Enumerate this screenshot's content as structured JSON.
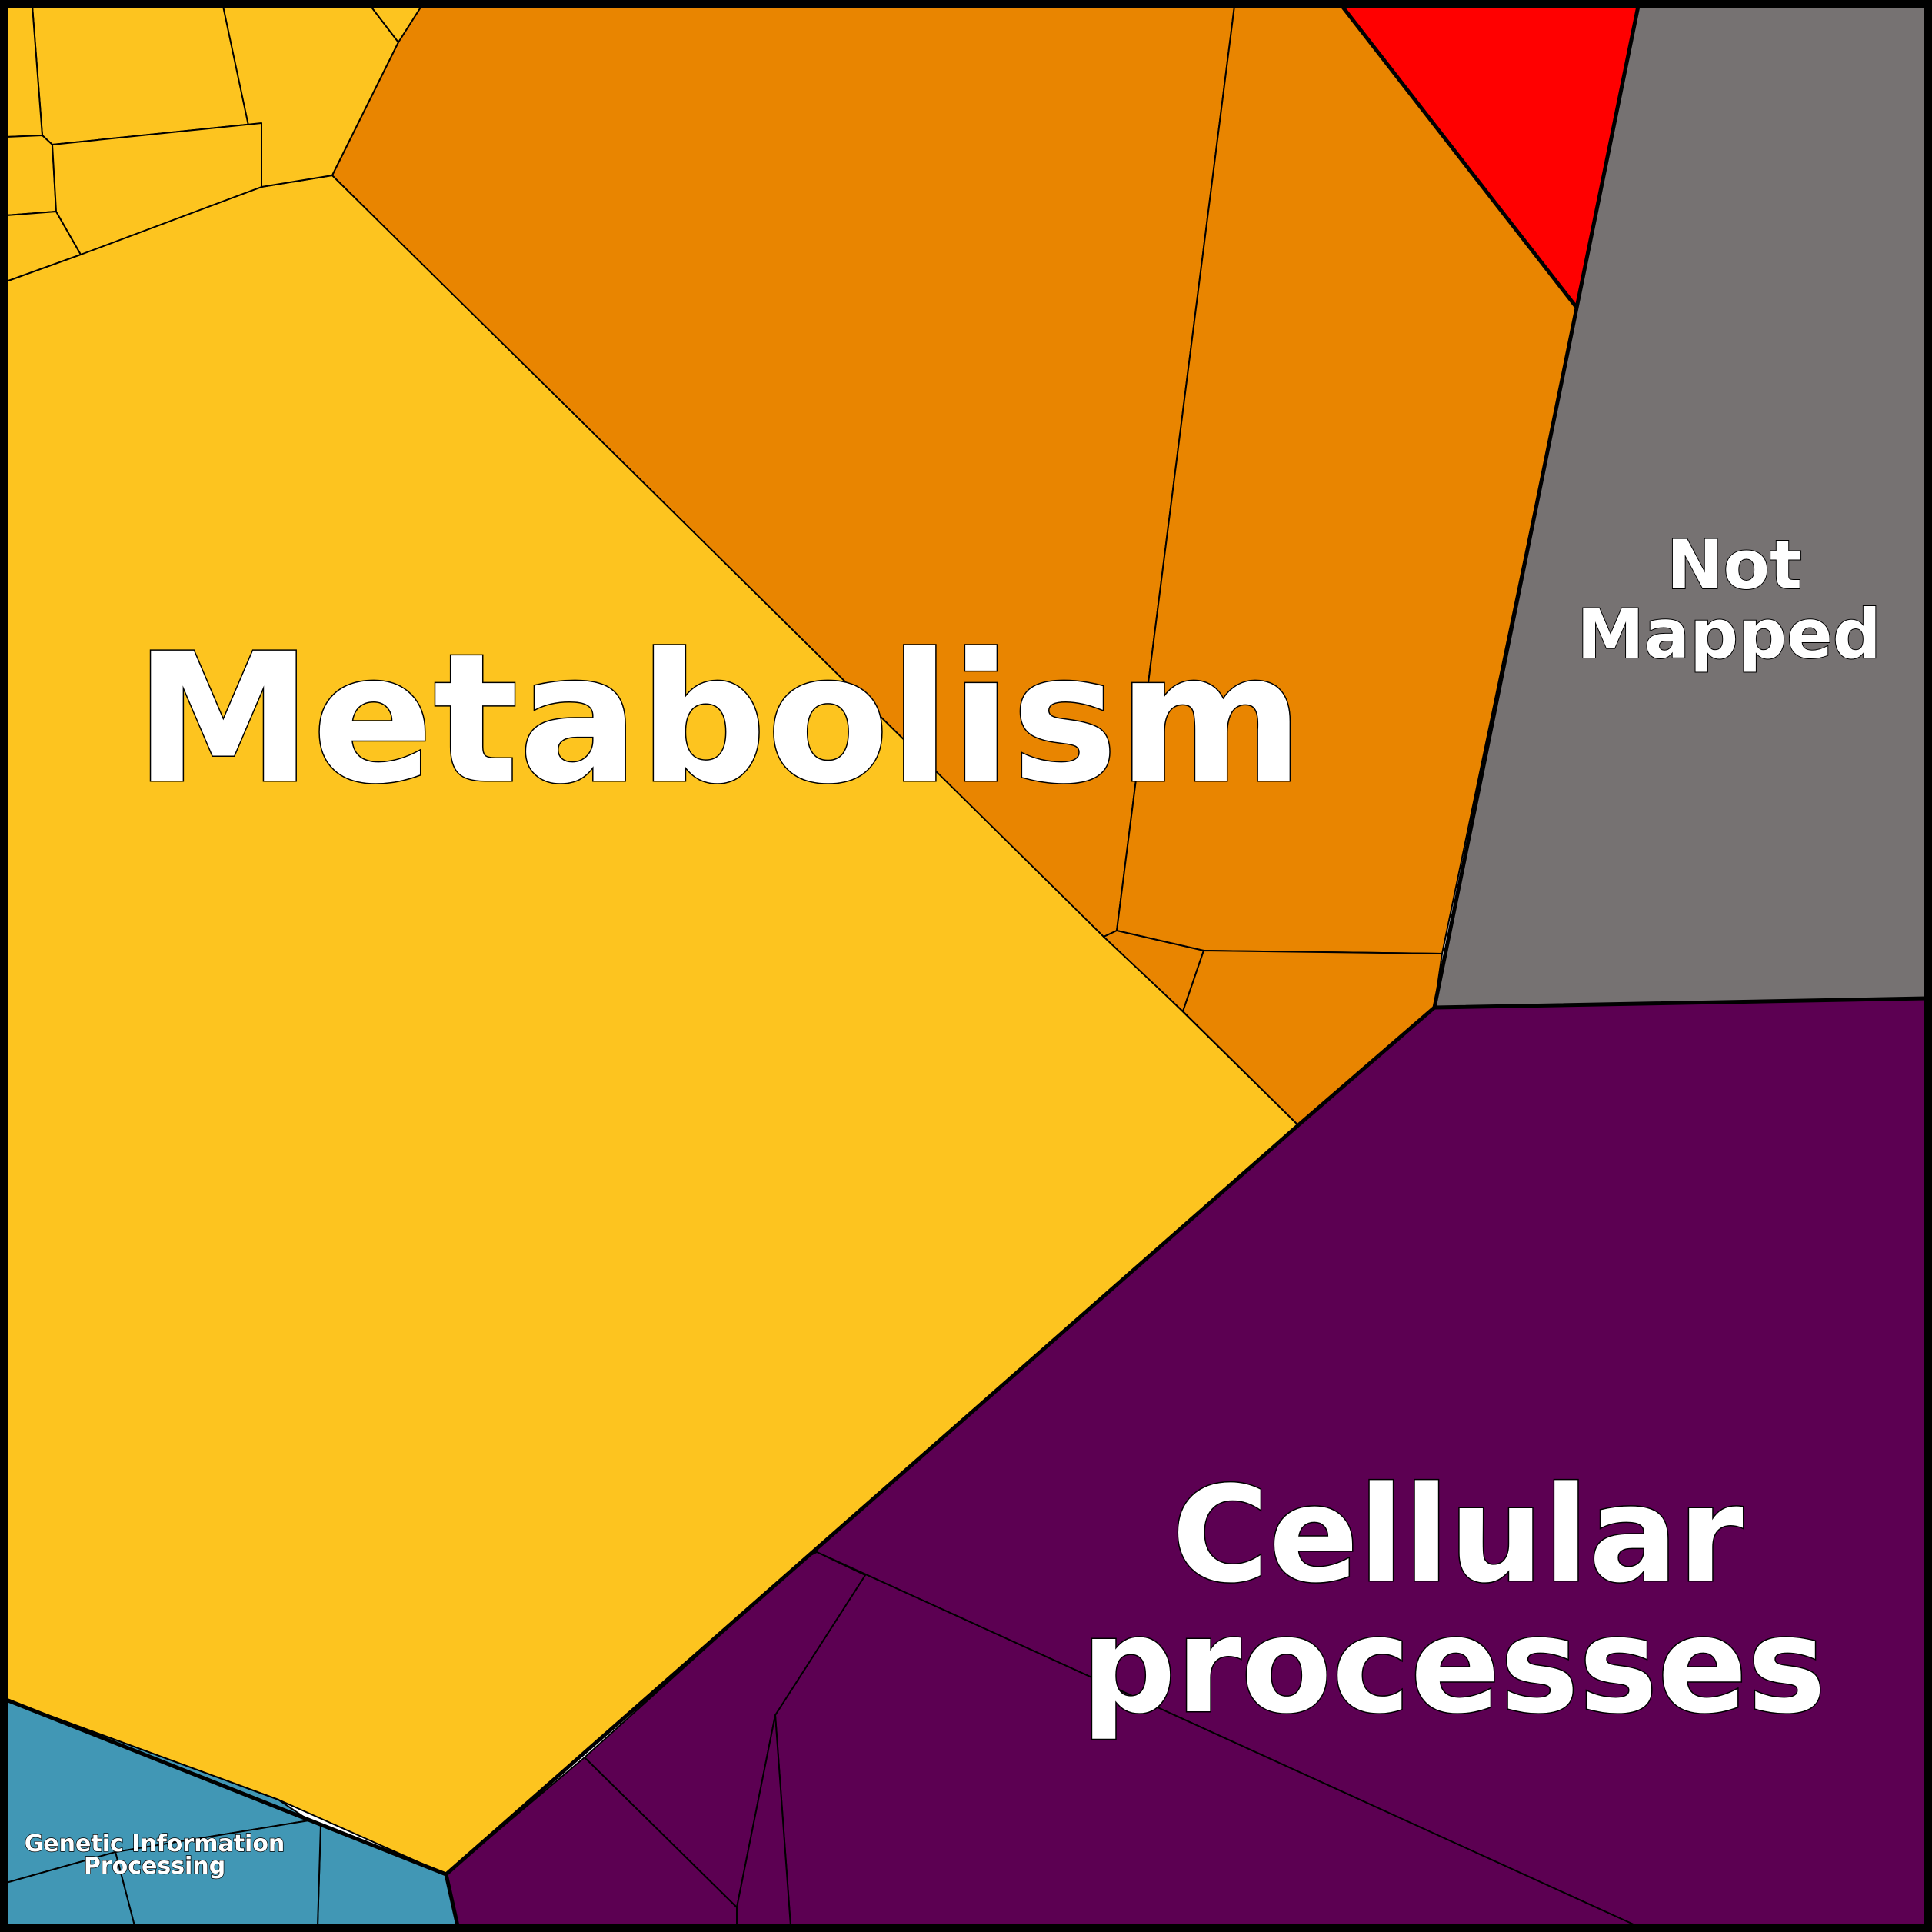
{
  "labels": {
    "metabolism": "Metabolism",
    "cellular_line1": "Cellular",
    "cellular_line2": "processes",
    "not_mapped_line1": "Not",
    "not_mapped_line2": "Mapped",
    "genetic_line1": "Genetic Information",
    "genetic_line2": "Processing"
  },
  "colors": {
    "metabolism_yellow": "#FDC41F",
    "metabolism_orange": "#E98500",
    "red": "#FF0000",
    "not_mapped": "#767272",
    "cellular_processes": "#5C0052",
    "genetic_information_processing": "#4197B5",
    "border": "#000000",
    "label_text": "#FFFFFF"
  }
}
